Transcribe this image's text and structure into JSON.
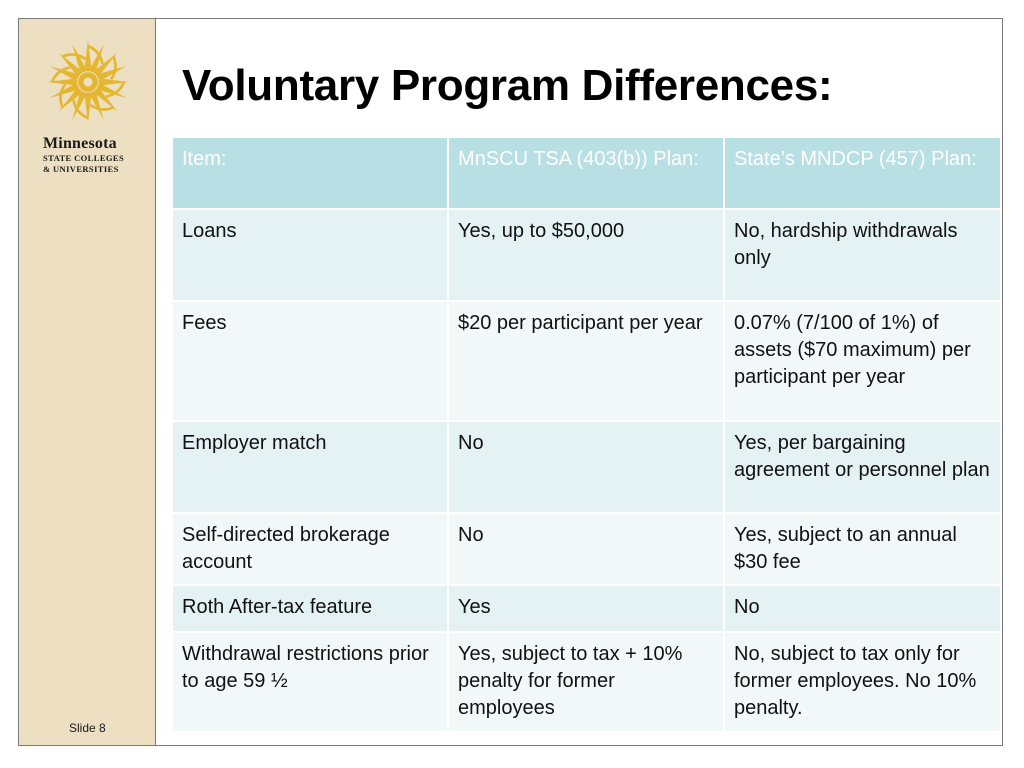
{
  "logo": {
    "name": "Minnesota",
    "line1": "STATE COLLEGES",
    "line2": "& UNIVERSITIES",
    "star_color": "#e5b632"
  },
  "slide": {
    "title": "Voluntary Program Differences:",
    "number_label": "Slide 8"
  },
  "table": {
    "headers": [
      "Item:",
      "MnSCU TSA (403(b)) Plan:",
      "State’s MNDCP (457) Plan:"
    ],
    "rows": [
      [
        "Loans",
        "Yes, up to $50,000",
        "No, hardship withdrawals only"
      ],
      [
        "Fees",
        "$20 per participant per year",
        "0.07% (7/100 of 1%) of assets ($70 maximum) per participant per year"
      ],
      [
        "Employer match",
        "No",
        "Yes, per bargaining agreement or personnel plan"
      ],
      [
        "Self-directed brokerage account",
        "No",
        "Yes,  subject to an annual $30 fee"
      ],
      [
        "Roth After-tax feature",
        "Yes",
        "No"
      ],
      [
        "Withdrawal restrictions prior to age 59 ½",
        "Yes, subject to tax + 10% penalty for former employees",
        "No, subject to tax only for former employees. No 10% penalty."
      ]
    ],
    "header_color": "#b8dfe3",
    "row_colors": [
      "#e5f2f3",
      "#f2f8f8"
    ]
  }
}
